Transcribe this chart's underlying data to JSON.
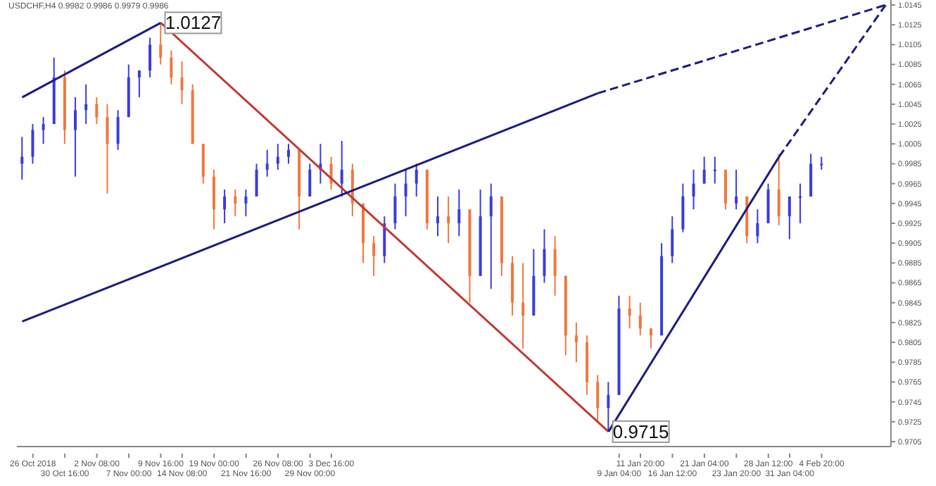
{
  "chart_data": {
    "type": "candlestick",
    "title": "USDCHF,H4 0.9982 0.9986 0.9979 0.9986",
    "categories": [
      null,
      "26 Oct 2018",
      null,
      null,
      "30 Oct 16:00",
      null,
      null,
      "2 Nov 08:00",
      null,
      null,
      "7 Nov 00:00",
      null,
      null,
      "9 Nov 16:00",
      null,
      "14 Nov 08:00",
      null,
      null,
      "19 Nov 00:00",
      null,
      null,
      "21 Nov 16:00",
      null,
      null,
      "26 Nov 08:00",
      null,
      null,
      "29 Nov 00:00",
      null,
      "3 Dec 16:00",
      null,
      null,
      null,
      null,
      null,
      null,
      null,
      null,
      null,
      null,
      null,
      null,
      null,
      null,
      null,
      null,
      null,
      null,
      null,
      null,
      null,
      null,
      null,
      null,
      null,
      null,
      "9 Jan 04:00",
      null,
      "11 Jan 20:00",
      null,
      null,
      "16 Jan 12:00",
      null,
      null,
      "21 Jan 04:00",
      null,
      null,
      "23 Jan 20:00",
      null,
      null,
      "28 Jan 12:00",
      null,
      "31 Jan 04:00",
      null,
      null,
      "4 Feb 20:00",
      null,
      null,
      null,
      null,
      null,
      null
    ],
    "ohlc": [
      [
        0.9985,
        1.0012,
        0.9969,
        0.9992
      ],
      [
        0.9992,
        1.0025,
        0.9985,
        1.0019
      ],
      [
        1.0019,
        1.0032,
        1.0005,
        1.0025
      ],
      [
        1.0025,
        1.0092,
        1.0025,
        1.0072
      ],
      [
        1.0072,
        1.0079,
        1.0005,
        1.0019
      ],
      [
        1.0019,
        1.0052,
        0.9972,
        1.0039
      ],
      [
        1.0039,
        1.0065,
        1.0025,
        1.0045
      ],
      [
        1.0045,
        1.0052,
        1.0025,
        1.0032
      ],
      [
        1.0032,
        1.0045,
        0.9955,
        1.0005
      ],
      [
        1.0005,
        1.0039,
        0.9999,
        1.0032
      ],
      [
        1.0032,
        1.0085,
        1.0032,
        1.0072
      ],
      [
        1.0072,
        1.0079,
        1.0052,
        1.0079
      ],
      [
        1.0079,
        1.0112,
        1.0072,
        1.0105
      ],
      [
        1.0105,
        1.0127,
        1.0085,
        1.0092
      ],
      [
        1.0092,
        1.0099,
        1.0065,
        1.0072
      ],
      [
        1.0072,
        1.0088,
        1.0045,
        1.0059
      ],
      [
        1.0059,
        1.0065,
        1.0005,
        1.0005
      ],
      [
        1.0005,
        1.0005,
        0.9965,
        0.9972
      ],
      [
        0.9972,
        0.9979,
        0.9919,
        0.9939
      ],
      [
        0.9939,
        0.9959,
        0.9925,
        0.9952
      ],
      [
        0.9952,
        0.9959,
        0.9932,
        0.9945
      ],
      [
        0.9945,
        0.9959,
        0.9932,
        0.9952
      ],
      [
        0.9952,
        0.9985,
        0.9952,
        0.9979
      ],
      [
        0.9979,
        0.9999,
        0.9972,
        0.9985
      ],
      [
        0.9985,
        1.0005,
        0.9979,
        0.9992
      ],
      [
        0.9992,
        1.0005,
        0.9985,
        0.9999
      ],
      [
        0.9999,
        0.9999,
        0.9919,
        0.9952
      ],
      [
        0.9952,
        0.9985,
        0.9952,
        0.9979
      ],
      [
        0.9979,
        1.0005,
        0.9965,
        0.9985
      ],
      [
        0.9985,
        0.9992,
        0.9959,
        0.9965
      ],
      [
        0.9965,
        1.0008,
        0.9952,
        0.9979
      ],
      [
        0.9979,
        0.9985,
        0.9932,
        0.9945
      ],
      [
        0.9945,
        0.9945,
        0.9885,
        0.9905
      ],
      [
        0.9905,
        0.9912,
        0.9872,
        0.9892
      ],
      [
        0.9892,
        0.9932,
        0.9885,
        0.9925
      ],
      [
        0.9925,
        0.9965,
        0.9919,
        0.9952
      ],
      [
        0.9952,
        0.9979,
        0.9932,
        0.9965
      ],
      [
        0.9965,
        0.9985,
        0.9952,
        0.9979
      ],
      [
        0.9979,
        0.9979,
        0.9919,
        0.9925
      ],
      [
        0.9925,
        0.9952,
        0.9912,
        0.9932
      ],
      [
        0.9932,
        0.9952,
        0.9905,
        0.9925
      ],
      [
        0.9925,
        0.9959,
        0.9912,
        0.9939
      ],
      [
        0.9939,
        0.9939,
        0.9845,
        0.9872
      ],
      [
        0.9872,
        0.9959,
        0.9872,
        0.9932
      ],
      [
        0.9932,
        0.9965,
        0.9859,
        0.9952
      ],
      [
        0.9952,
        0.9952,
        0.9872,
        0.9885
      ],
      [
        0.9885,
        0.9892,
        0.9832,
        0.9845
      ],
      [
        0.9845,
        0.9885,
        0.9799,
        0.9832
      ],
      [
        0.9832,
        0.9899,
        0.9832,
        0.9872
      ],
      [
        0.9872,
        0.9919,
        0.9865,
        0.9899
      ],
      [
        0.9899,
        0.9912,
        0.9852,
        0.9872
      ],
      [
        0.9872,
        0.9872,
        0.9792,
        0.9812
      ],
      [
        0.9812,
        0.9825,
        0.9785,
        0.9805
      ],
      [
        0.9805,
        0.9812,
        0.9752,
        0.9765
      ],
      [
        0.9765,
        0.9772,
        0.9725,
        0.9739
      ],
      [
        0.9739,
        0.9765,
        0.9715,
        0.9752
      ],
      [
        0.9752,
        0.9852,
        0.9752,
        0.9839
      ],
      [
        0.9839,
        0.9852,
        0.9819,
        0.9832
      ],
      [
        0.9832,
        0.9845,
        0.9812,
        0.9819
      ],
      [
        0.9819,
        0.9819,
        0.9799,
        0.9812
      ],
      [
        0.9812,
        0.9905,
        0.9812,
        0.9892
      ],
      [
        0.9892,
        0.9932,
        0.9885,
        0.9919
      ],
      [
        0.9919,
        0.9965,
        0.9916,
        0.9952
      ],
      [
        0.9952,
        0.9979,
        0.9939,
        0.9965
      ],
      [
        0.9965,
        0.9992,
        0.9965,
        0.9979
      ],
      [
        0.9979,
        0.9992,
        0.9965,
        0.9979
      ],
      [
        0.9979,
        0.9979,
        0.9939,
        0.9945
      ],
      [
        0.9945,
        0.9979,
        0.9939,
        0.9952
      ],
      [
        0.9952,
        0.9952,
        0.9905,
        0.9912
      ],
      [
        0.9912,
        0.9939,
        0.9905,
        0.9925
      ],
      [
        0.9925,
        0.9965,
        0.9925,
        0.9959
      ],
      [
        0.9959,
        0.9995,
        0.9923,
        0.9932
      ],
      [
        0.9932,
        0.9952,
        0.9909,
        0.9952
      ],
      [
        0.9952,
        0.9965,
        0.9925,
        0.9952
      ],
      [
        0.9952,
        0.9995,
        0.9952,
        0.9985
      ],
      [
        0.9985,
        0.9992,
        0.9979,
        0.9985
      ],
      null,
      null,
      null,
      null,
      null,
      null
    ],
    "colors": [
      "#3b3bdc",
      "#3b3bdc",
      "#3b3bdc",
      "#3b3bdc",
      "#f0783c",
      "#3b3bdc",
      "#3b3bdc",
      "#f0783c",
      "#f0783c",
      "#3b3bdc",
      "#3b3bdc",
      "#3b3bdc",
      "#3b3bdc",
      "#f0783c",
      "#f0783c",
      "#f0783c",
      "#f0783c",
      "#f0783c",
      "#f0783c",
      "#3b3bdc",
      "#f0783c",
      "#3b3bdc",
      "#3b3bdc",
      "#3b3bdc",
      "#3b3bdc",
      "#3b3bdc",
      "#f0783c",
      "#3b3bdc",
      "#3b3bdc",
      "#f0783c",
      "#3b3bdc",
      "#f0783c",
      "#f0783c",
      "#f0783c",
      "#3b3bdc",
      "#3b3bdc",
      "#3b3bdc",
      "#3b3bdc",
      "#f0783c",
      "#3b3bdc",
      "#f0783c",
      "#3b3bdc",
      "#f0783c",
      "#3b3bdc",
      "#3b3bdc",
      "#f0783c",
      "#f0783c",
      "#f0783c",
      "#3b3bdc",
      "#3b3bdc",
      "#f0783c",
      "#f0783c",
      "#f0783c",
      "#f0783c",
      "#f0783c",
      "#3b3bdc",
      "#3b3bdc",
      "#f0783c",
      "#f0783c",
      "#f0783c",
      "#3b3bdc",
      "#3b3bdc",
      "#3b3bdc",
      "#3b3bdc",
      "#3b3bdc",
      "#3b3bdc",
      "#f0783c",
      "#3b3bdc",
      "#f0783c",
      "#3b3bdc",
      "#3b3bdc",
      "#f0783c",
      "#3b3bdc",
      "#3b3bdc",
      "#3b3bdc",
      "#3b3bdc",
      null,
      null,
      null,
      null,
      null,
      null
    ],
    "series": [
      {
        "type": "line",
        "color": "#1c1c80",
        "line_style": "solid",
        "values": [
          1.0052,
          null,
          null,
          null,
          null,
          null,
          null,
          null,
          null,
          null,
          null,
          null,
          null,
          1.0127,
          null,
          null,
          null,
          null,
          null,
          null,
          null,
          null,
          null,
          null,
          null,
          null,
          null,
          null,
          null,
          null,
          null,
          null,
          null,
          null,
          null,
          null,
          null,
          null,
          null,
          null,
          null,
          null,
          null,
          null,
          null,
          null,
          null,
          null,
          null,
          null,
          null,
          null,
          null,
          null,
          null,
          null,
          null,
          null,
          null,
          null,
          null,
          null,
          null,
          null,
          null,
          null,
          null,
          null,
          null,
          null,
          null,
          null,
          null,
          null,
          null,
          null,
          null,
          null,
          null,
          null,
          null,
          null
        ]
      },
      {
        "type": "line",
        "color": "#c03a30",
        "line_style": "solid",
        "values": [
          null,
          null,
          null,
          null,
          null,
          null,
          null,
          null,
          null,
          null,
          null,
          null,
          null,
          1.0127,
          null,
          null,
          null,
          null,
          null,
          null,
          null,
          null,
          null,
          null,
          null,
          null,
          null,
          null,
          null,
          null,
          null,
          null,
          null,
          null,
          null,
          null,
          null,
          null,
          null,
          null,
          null,
          null,
          null,
          null,
          null,
          null,
          null,
          null,
          null,
          null,
          null,
          null,
          null,
          null,
          null,
          0.9715,
          null,
          null,
          null,
          null,
          null,
          null,
          null,
          null,
          null,
          null,
          null,
          null,
          null,
          null,
          null,
          null,
          null,
          null,
          null,
          null,
          null,
          null,
          null,
          null,
          null,
          null
        ]
      },
      {
        "type": "line",
        "color": "#1c1c80",
        "line_style": "solid",
        "values": [
          null,
          null,
          null,
          null,
          null,
          null,
          null,
          null,
          null,
          null,
          null,
          null,
          null,
          null,
          null,
          null,
          null,
          null,
          null,
          null,
          null,
          null,
          null,
          null,
          null,
          null,
          null,
          null,
          null,
          null,
          null,
          null,
          null,
          null,
          null,
          null,
          null,
          null,
          null,
          null,
          null,
          null,
          null,
          null,
          null,
          null,
          null,
          null,
          null,
          null,
          null,
          null,
          null,
          null,
          null,
          0.9715,
          null,
          null,
          null,
          null,
          null,
          null,
          null,
          null,
          null,
          null,
          null,
          null,
          null,
          null,
          null,
          0.9992,
          null,
          null,
          null,
          null,
          null,
          null,
          null,
          null,
          null,
          null
        ]
      },
      {
        "type": "line",
        "color": "#1c1c80",
        "line_style": "dashed",
        "values": [
          null,
          null,
          null,
          null,
          null,
          null,
          null,
          null,
          null,
          null,
          null,
          null,
          null,
          null,
          null,
          null,
          null,
          null,
          null,
          null,
          null,
          null,
          null,
          null,
          null,
          null,
          null,
          null,
          null,
          null,
          null,
          null,
          null,
          null,
          null,
          null,
          null,
          null,
          null,
          null,
          null,
          null,
          null,
          null,
          null,
          null,
          null,
          null,
          null,
          null,
          null,
          null,
          null,
          null,
          null,
          null,
          null,
          null,
          null,
          null,
          null,
          null,
          null,
          null,
          null,
          null,
          null,
          null,
          null,
          null,
          null,
          0.9992,
          null,
          null,
          null,
          null,
          null,
          null,
          null,
          null,
          null,
          1.0145
        ]
      },
      {
        "type": "line",
        "color": "#1c1c80",
        "line_style": "solid",
        "values": [
          0.9826,
          null,
          null,
          null,
          null,
          null,
          null,
          null,
          null,
          null,
          null,
          null,
          null,
          null,
          null,
          null,
          null,
          null,
          null,
          null,
          null,
          null,
          null,
          null,
          null,
          null,
          null,
          null,
          null,
          null,
          null,
          null,
          null,
          null,
          null,
          null,
          null,
          null,
          null,
          null,
          null,
          null,
          null,
          null,
          null,
          null,
          null,
          null,
          null,
          null,
          null,
          null,
          null,
          null,
          1.0056,
          null,
          null,
          null,
          null,
          null,
          null,
          null,
          null,
          null,
          null,
          null,
          null,
          null,
          null,
          null,
          null,
          null,
          null,
          null,
          null,
          null,
          null,
          null,
          null,
          null,
          null,
          null
        ]
      },
      {
        "type": "line",
        "color": "#1c1c80",
        "line_style": "dashed",
        "values": [
          null,
          null,
          null,
          null,
          null,
          null,
          null,
          null,
          null,
          null,
          null,
          null,
          null,
          null,
          null,
          null,
          null,
          null,
          null,
          null,
          null,
          null,
          null,
          null,
          null,
          null,
          null,
          null,
          null,
          null,
          null,
          null,
          null,
          null,
          null,
          null,
          null,
          null,
          null,
          null,
          null,
          null,
          null,
          null,
          null,
          null,
          null,
          null,
          null,
          null,
          null,
          null,
          null,
          null,
          1.0056,
          null,
          null,
          null,
          null,
          null,
          null,
          null,
          null,
          null,
          null,
          null,
          null,
          null,
          null,
          null,
          null,
          null,
          null,
          null,
          null,
          null,
          null,
          null,
          null,
          null,
          null,
          1.0145
        ]
      }
    ],
    "ylim": [
      0.97,
      1.015
    ],
    "yticks": [
      1.0145,
      1.0125,
      1.0105,
      1.0085,
      1.0065,
      1.0045,
      1.0025,
      1.0005,
      0.9985,
      0.9965,
      0.9945,
      0.9925,
      0.9905,
      0.9885,
      0.9865,
      0.9845,
      0.9825,
      0.9805,
      0.9785,
      0.9765,
      0.9745,
      0.9725,
      0.9705
    ],
    "annotations": [
      {
        "text": "1.0127",
        "y": 1.0127
      },
      {
        "text": "0.9715",
        "y": 0.9715
      }
    ]
  }
}
